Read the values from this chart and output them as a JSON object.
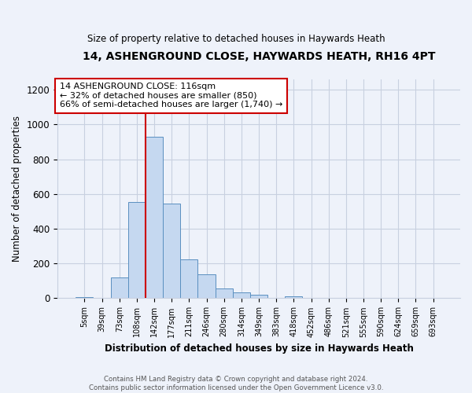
{
  "title1": "14, ASHENGROUND CLOSE, HAYWARDS HEATH, RH16 4PT",
  "title2": "Size of property relative to detached houses in Haywards Heath",
  "xlabel": "Distribution of detached houses by size in Haywards Heath",
  "ylabel": "Number of detached properties",
  "footer1": "Contains HM Land Registry data © Crown copyright and database right 2024.",
  "footer2": "Contains public sector information licensed under the Open Government Licence v3.0.",
  "annotation_title": "14 ASHENGROUND CLOSE: 116sqm",
  "annotation_line1": "← 32% of detached houses are smaller (850)",
  "annotation_line2": "66% of semi-detached houses are larger (1,740) →",
  "bar_categories": [
    "5sqm",
    "39sqm",
    "73sqm",
    "108sqm",
    "142sqm",
    "177sqm",
    "211sqm",
    "246sqm",
    "280sqm",
    "314sqm",
    "349sqm",
    "383sqm",
    "418sqm",
    "452sqm",
    "486sqm",
    "521sqm",
    "555sqm",
    "590sqm",
    "624sqm",
    "659sqm",
    "693sqm"
  ],
  "bar_values": [
    5,
    0,
    120,
    555,
    930,
    545,
    225,
    140,
    57,
    33,
    22,
    0,
    10,
    0,
    0,
    0,
    0,
    0,
    0,
    0,
    0
  ],
  "bar_color": "#c5d8f0",
  "bar_edge_color": "#5a8fc0",
  "vline_x_index": 4,
  "vline_color": "#cc0000",
  "ylim": [
    0,
    1260
  ],
  "yticks": [
    0,
    200,
    400,
    600,
    800,
    1000,
    1200
  ],
  "bg_color": "#eef2fa",
  "grid_color": "#c8d0e0",
  "annotation_box_color": "#ffffff",
  "annotation_border_color": "#cc0000"
}
